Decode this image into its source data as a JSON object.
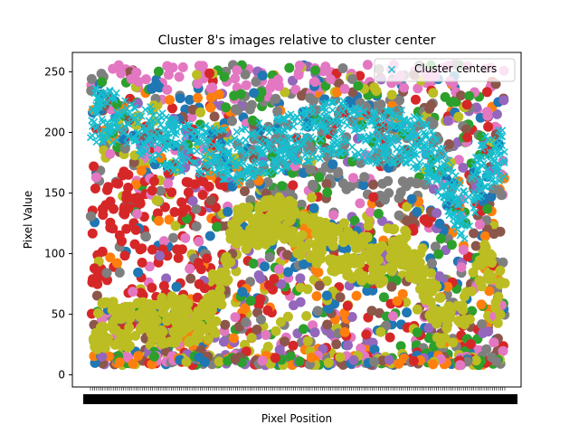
{
  "chart_data": {
    "type": "scatter",
    "title": "Cluster 8's images relative to cluster center",
    "xlabel": "Pixel Position",
    "ylabel": "Pixel Value",
    "ylim": [
      -10,
      266
    ],
    "y_ticks": [
      "0",
      "50",
      "100",
      "150",
      "200",
      "250"
    ],
    "x_tick_note": "dense overlapping pixel-index tick labels",
    "legend": {
      "placement": "top-right",
      "entries": [
        "Cluster centers"
      ]
    },
    "grid": false,
    "image_series_colors": [
      "#1f77b4",
      "#ff7f0e",
      "#2ca02c",
      "#d62728",
      "#9467bd",
      "#8c564b",
      "#e377c2",
      "#7f7f7f",
      "#bcbd22"
    ],
    "center_color": "#17becf",
    "center_profile": [
      {
        "x": 0.0,
        "y": 215
      },
      {
        "x": 0.05,
        "y": 212
      },
      {
        "x": 0.1,
        "y": 208
      },
      {
        "x": 0.15,
        "y": 198
      },
      {
        "x": 0.2,
        "y": 190
      },
      {
        "x": 0.25,
        "y": 186
      },
      {
        "x": 0.3,
        "y": 182
      },
      {
        "x": 0.35,
        "y": 178
      },
      {
        "x": 0.4,
        "y": 185
      },
      {
        "x": 0.45,
        "y": 190
      },
      {
        "x": 0.5,
        "y": 195
      },
      {
        "x": 0.55,
        "y": 200
      },
      {
        "x": 0.6,
        "y": 205
      },
      {
        "x": 0.65,
        "y": 200
      },
      {
        "x": 0.7,
        "y": 195
      },
      {
        "x": 0.75,
        "y": 198
      },
      {
        "x": 0.8,
        "y": 190
      },
      {
        "x": 0.85,
        "y": 165
      },
      {
        "x": 0.9,
        "y": 130
      },
      {
        "x": 0.95,
        "y": 175
      },
      {
        "x": 1.0,
        "y": 185
      }
    ],
    "olive_profile": [
      {
        "x": 0.0,
        "y": 40
      },
      {
        "x": 0.1,
        "y": 42
      },
      {
        "x": 0.2,
        "y": 45
      },
      {
        "x": 0.3,
        "y": 50
      },
      {
        "x": 0.35,
        "y": 120
      },
      {
        "x": 0.45,
        "y": 130
      },
      {
        "x": 0.55,
        "y": 110
      },
      {
        "x": 0.65,
        "y": 95
      },
      {
        "x": 0.75,
        "y": 105
      },
      {
        "x": 0.8,
        "y": 85
      },
      {
        "x": 0.85,
        "y": 40
      },
      {
        "x": 0.9,
        "y": 45
      },
      {
        "x": 0.95,
        "y": 90
      },
      {
        "x": 1.0,
        "y": 60
      }
    ]
  }
}
